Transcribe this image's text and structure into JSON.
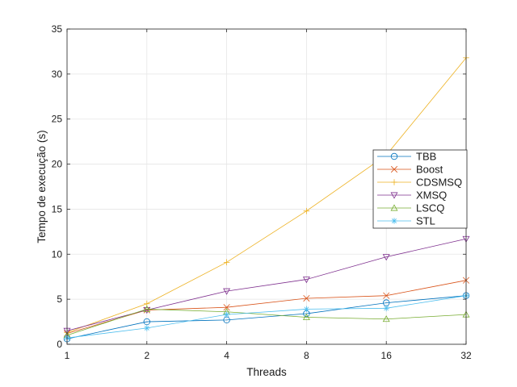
{
  "chart_data": {
    "type": "line",
    "title": "",
    "xlabel": "Threads",
    "ylabel": "Tempo de execução (s)",
    "x_scale": "log2",
    "x": [
      1,
      2,
      4,
      8,
      16,
      32
    ],
    "x_tick_labels": [
      "1",
      "2",
      "4",
      "8",
      "16",
      "32"
    ],
    "ylim": [
      0,
      35
    ],
    "y_ticks": [
      0,
      5,
      10,
      15,
      20,
      25,
      30,
      35
    ],
    "grid": true,
    "legend_position": "right",
    "series": [
      {
        "name": "TBB",
        "marker": "circle",
        "color": "#0072bd",
        "values": [
          0.6,
          2.5,
          2.7,
          3.4,
          4.6,
          5.4
        ]
      },
      {
        "name": "Boost",
        "marker": "x",
        "color": "#d95319",
        "values": [
          1.2,
          3.8,
          4.1,
          5.1,
          5.4,
          7.1
        ]
      },
      {
        "name": "CDSMSQ",
        "marker": "plus",
        "color": "#edb120",
        "values": [
          1.3,
          4.5,
          9.1,
          14.8,
          21.0,
          31.8
        ]
      },
      {
        "name": "XMSQ",
        "marker": "triangle-down",
        "color": "#7e2f8e",
        "values": [
          1.5,
          3.8,
          5.9,
          7.2,
          9.7,
          11.7
        ]
      },
      {
        "name": "LSCQ",
        "marker": "triangle-up",
        "color": "#77ac30",
        "values": [
          1.0,
          3.9,
          3.6,
          3.0,
          2.8,
          3.3
        ]
      },
      {
        "name": "STL",
        "marker": "asterisk",
        "color": "#4dbeee",
        "values": [
          0.7,
          1.8,
          3.3,
          3.9,
          4.0,
          5.4
        ]
      }
    ]
  }
}
